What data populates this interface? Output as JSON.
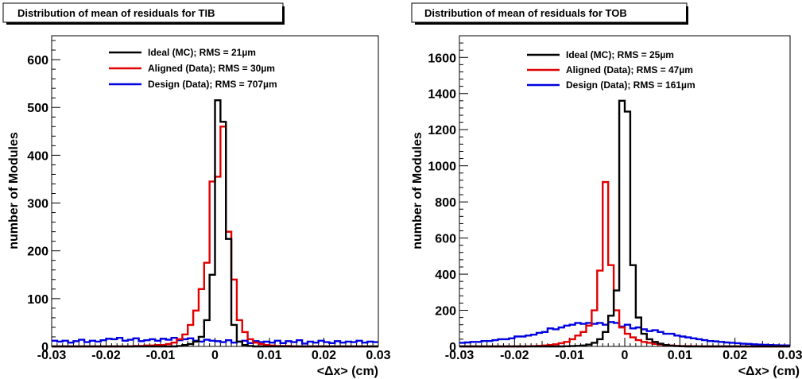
{
  "chart_data": [
    {
      "type": "histogram",
      "title": "Distribution of mean of residuals for TIB",
      "xlabel": "<Δx> (cm)",
      "ylabel": "number of Modules",
      "xlim": [
        -0.03,
        0.03
      ],
      "ylim": [
        0,
        650
      ],
      "xticks": [
        "-0.03",
        "-0.02",
        "-0.01",
        "0",
        "0.01",
        "0.02",
        "0.03"
      ],
      "yticks": [
        "0",
        "100",
        "200",
        "300",
        "400",
        "500",
        "600"
      ],
      "ytick_values": [
        0,
        100,
        200,
        300,
        400,
        500,
        600
      ],
      "xtick_values": [
        -0.03,
        -0.02,
        -0.01,
        0,
        0.01,
        0.02,
        0.03
      ],
      "bin_edges_start": -0.03,
      "bin_width": 0.001,
      "series": [
        {
          "name": "Ideal (MC); RMS = 21µm",
          "color": "#000000",
          "values": [
            0,
            0,
            0,
            0,
            0,
            0,
            0,
            0,
            0,
            0,
            0,
            0,
            0,
            0,
            0,
            0,
            0,
            0,
            0,
            0,
            0,
            0,
            0,
            1,
            3,
            5,
            10,
            20,
            55,
            150,
            515,
            470,
            225,
            45,
            10,
            3,
            1,
            0,
            0,
            0,
            0,
            0,
            0,
            0,
            0,
            0,
            0,
            0,
            0,
            0,
            0,
            0,
            0,
            0,
            0,
            0,
            0,
            0,
            0,
            0
          ]
        },
        {
          "name": "Aligned (Data); RMS = 30µm",
          "color": "#e00000",
          "values": [
            0,
            0,
            0,
            0,
            0,
            0,
            0,
            0,
            0,
            0,
            0,
            0,
            0,
            0,
            0,
            1,
            1,
            2,
            2,
            3,
            3,
            5,
            8,
            15,
            25,
            45,
            75,
            120,
            175,
            345,
            355,
            460,
            240,
            140,
            55,
            30,
            15,
            8,
            5,
            3,
            2,
            1,
            1,
            1,
            0,
            0,
            0,
            0,
            0,
            0,
            0,
            0,
            0,
            0,
            0,
            0,
            0,
            0,
            0,
            0
          ]
        },
        {
          "name": "Design (Data); RMS = 707µm",
          "color": "#0000e0",
          "values": [
            12,
            10,
            12,
            8,
            11,
            14,
            9,
            12,
            10,
            13,
            16,
            15,
            18,
            12,
            14,
            17,
            11,
            13,
            15,
            12,
            16,
            14,
            18,
            13,
            15,
            17,
            12,
            10,
            14,
            12,
            11,
            9,
            13,
            8,
            10,
            12,
            7,
            11,
            9,
            10,
            8,
            12,
            7,
            11,
            9,
            13,
            6,
            10,
            8,
            12,
            9,
            7,
            11,
            8,
            10,
            9,
            12,
            8,
            10,
            9
          ]
        }
      ],
      "legend_position": "top-center"
    },
    {
      "type": "histogram",
      "title": "Distribution of mean of residuals for TOB",
      "xlabel": "<Δx> (cm)",
      "ylabel": "number of Modules",
      "xlim": [
        -0.03,
        0.03
      ],
      "ylim": [
        0,
        1720
      ],
      "xticks": [
        "-0.03",
        "-0.02",
        "-0.01",
        "0",
        "0.01",
        "0.02",
        "0.03"
      ],
      "yticks": [
        "0",
        "200",
        "400",
        "600",
        "800",
        "1000",
        "1200",
        "1400",
        "1600"
      ],
      "ytick_values": [
        0,
        200,
        400,
        600,
        800,
        1000,
        1200,
        1400,
        1600
      ],
      "xtick_values": [
        -0.03,
        -0.02,
        -0.01,
        0,
        0.01,
        0.02,
        0.03
      ],
      "bin_edges_start": -0.03,
      "bin_width": 0.001,
      "series": [
        {
          "name": "Ideal (MC); RMS = 25µm",
          "color": "#000000",
          "values": [
            0,
            0,
            0,
            0,
            0,
            0,
            0,
            0,
            0,
            0,
            0,
            0,
            0,
            0,
            0,
            0,
            0,
            0,
            0,
            1,
            2,
            3,
            5,
            10,
            20,
            40,
            80,
            170,
            310,
            1360,
            1300,
            450,
            160,
            70,
            40,
            25,
            15,
            8,
            4,
            2,
            1,
            0,
            0,
            0,
            0,
            0,
            0,
            0,
            0,
            0,
            0,
            0,
            0,
            0,
            0,
            0,
            0,
            0,
            0,
            0
          ]
        },
        {
          "name": "Aligned (Data); RMS = 47µm",
          "color": "#e00000",
          "values": [
            0,
            0,
            0,
            0,
            0,
            0,
            0,
            0,
            0,
            0,
            0,
            0,
            1,
            2,
            3,
            5,
            8,
            12,
            18,
            25,
            40,
            60,
            80,
            115,
            200,
            420,
            910,
            450,
            200,
            105,
            70,
            50,
            35,
            25,
            20,
            14,
            10,
            7,
            5,
            3,
            2,
            2,
            1,
            1,
            0,
            0,
            0,
            0,
            0,
            0,
            0,
            0,
            0,
            0,
            0,
            0,
            0,
            0,
            0,
            0
          ]
        },
        {
          "name": "Design (Data); RMS = 161µm",
          "color": "#0000e0",
          "values": [
            20,
            22,
            25,
            25,
            30,
            30,
            35,
            40,
            40,
            45,
            55,
            55,
            60,
            65,
            75,
            80,
            100,
            95,
            105,
            115,
            120,
            130,
            125,
            130,
            125,
            130,
            120,
            135,
            130,
            110,
            120,
            100,
            105,
            95,
            85,
            90,
            80,
            70,
            70,
            60,
            55,
            50,
            45,
            40,
            35,
            30,
            28,
            25,
            22,
            20,
            18,
            15,
            14,
            12,
            10,
            9,
            8,
            7,
            6,
            6
          ]
        }
      ],
      "legend_position": "top-center"
    }
  ]
}
